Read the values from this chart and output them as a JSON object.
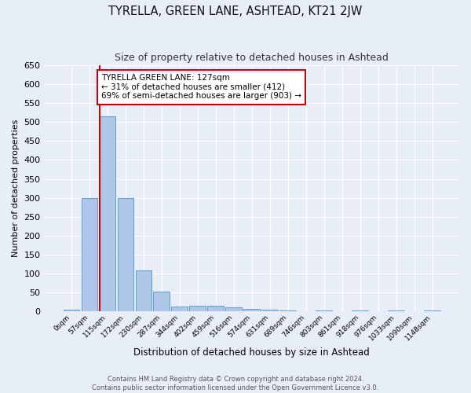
{
  "title": "TYRELLA, GREEN LANE, ASHTEAD, KT21 2JW",
  "subtitle": "Size of property relative to detached houses in Ashtead",
  "xlabel": "Distribution of detached houses by size in Ashtead",
  "ylabel": "Number of detached properties",
  "bin_labels": [
    "0sqm",
    "57sqm",
    "115sqm",
    "172sqm",
    "230sqm",
    "287sqm",
    "344sqm",
    "402sqm",
    "459sqm",
    "516sqm",
    "574sqm",
    "631sqm",
    "689sqm",
    "746sqm",
    "803sqm",
    "861sqm",
    "918sqm",
    "976sqm",
    "1033sqm",
    "1090sqm",
    "1148sqm"
  ],
  "bar_heights": [
    5,
    300,
    515,
    300,
    108,
    53,
    12,
    15,
    15,
    10,
    6,
    5,
    2,
    0,
    3,
    0,
    2,
    0,
    3,
    0,
    3
  ],
  "bar_color": "#aec6e8",
  "bar_edge_color": "#5a9fd4",
  "marker_color": "#cc0000",
  "annotation_text": "TYRELLA GREEN LANE: 127sqm\n← 31% of detached houses are smaller (412)\n69% of semi-detached houses are larger (903) →",
  "annotation_box_color": "#ffffff",
  "annotation_box_edge_color": "#cc0000",
  "ylim": [
    0,
    650
  ],
  "yticks": [
    0,
    50,
    100,
    150,
    200,
    250,
    300,
    350,
    400,
    450,
    500,
    550,
    600,
    650
  ],
  "footer_line1": "Contains HM Land Registry data © Crown copyright and database right 2024.",
  "footer_line2": "Contains public sector information licensed under the Open Government Licence v3.0.",
  "bg_color": "#e8eef8",
  "plot_bg_color": "#e8eef8",
  "grid_color": "#ffffff",
  "title_fontsize": 10.5,
  "subtitle_fontsize": 9
}
